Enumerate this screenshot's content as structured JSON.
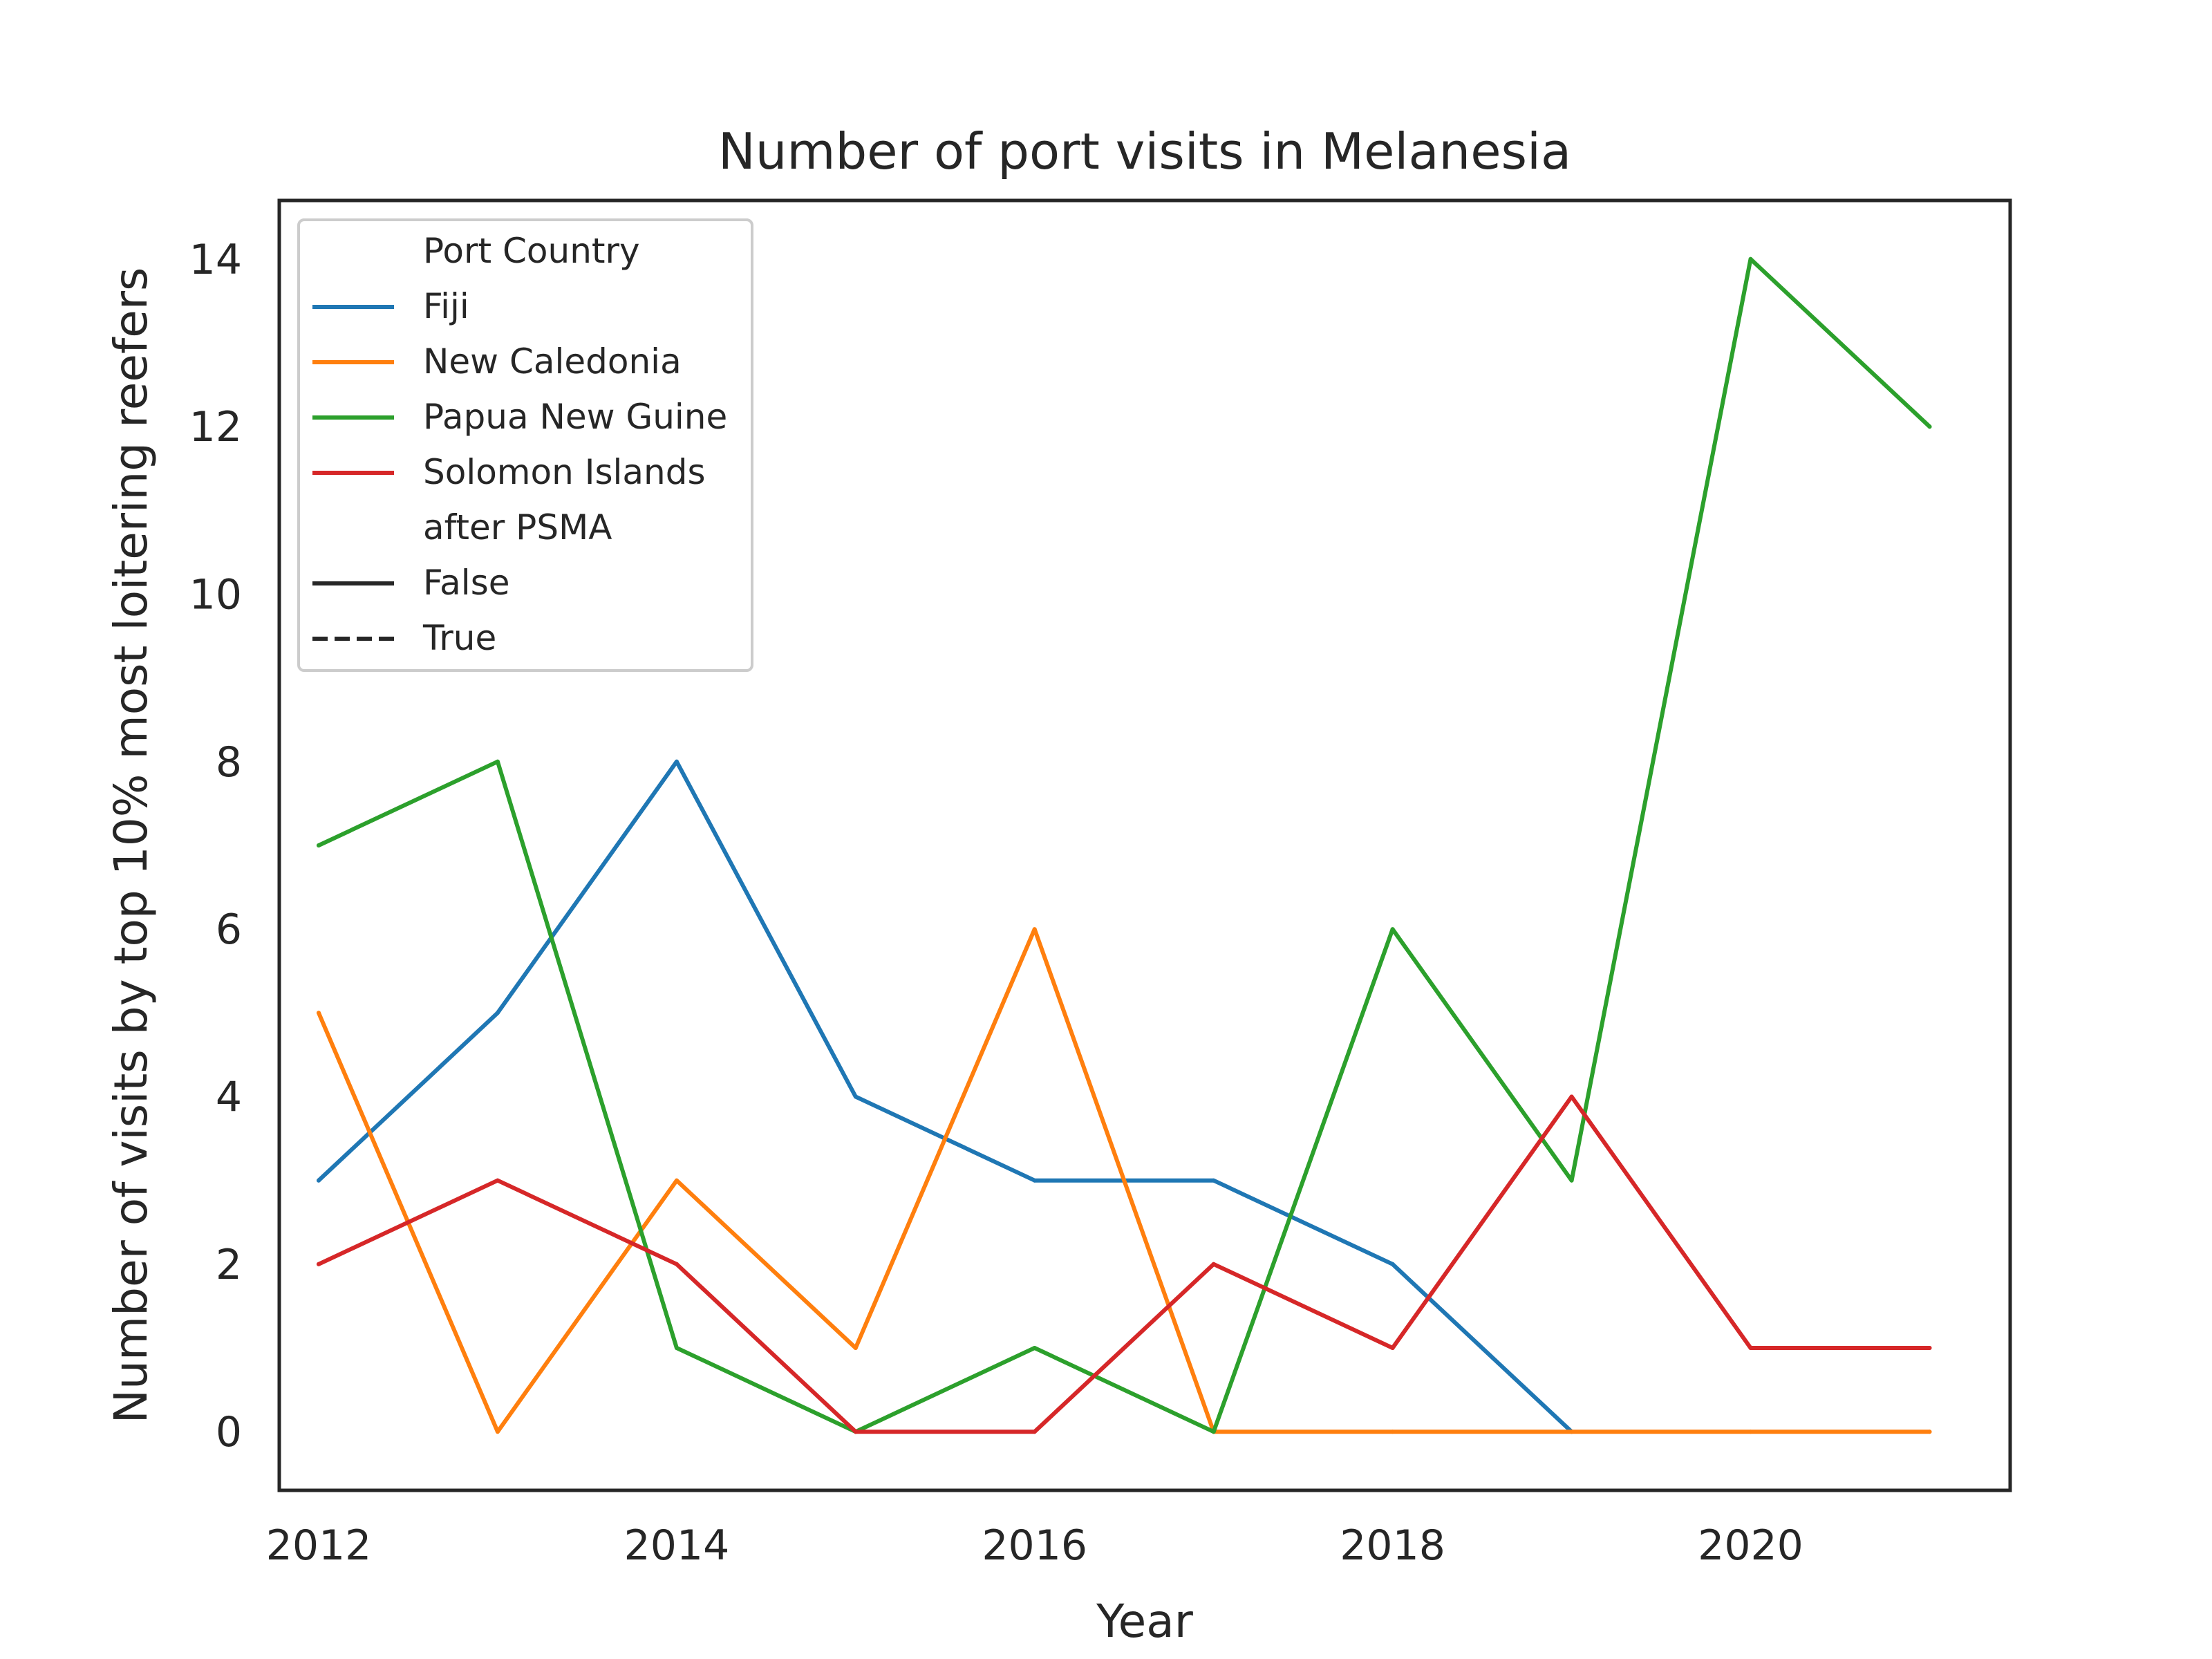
{
  "chart_data": {
    "type": "line",
    "title": "Number of port visits in Melanesia",
    "xlabel": "Year",
    "ylabel": "Number of visits by top 10% most loitering reefers",
    "x": [
      2012,
      2013,
      2014,
      2015,
      2016,
      2017,
      2018,
      2019,
      2020,
      2021
    ],
    "xlim": [
      2011.78,
      2021.45
    ],
    "ylim": [
      -0.7,
      14.7
    ],
    "xticks": [
      2012,
      2014,
      2016,
      2018,
      2020
    ],
    "yticks": [
      0,
      2,
      4,
      6,
      8,
      10,
      12,
      14
    ],
    "grid": false,
    "legend": {
      "placement": "top-left",
      "hue_title": "Port Country",
      "style_title": "after PSMA",
      "style_entries": [
        {
          "label": "False",
          "dash": "solid"
        },
        {
          "label": "True",
          "dash": "dashed"
        }
      ]
    },
    "series": [
      {
        "name": "Fiji",
        "color": "#1f77b4",
        "x": [
          2012,
          2013,
          2014,
          2015,
          2016,
          2017,
          2018,
          2019
        ],
        "values": [
          3,
          5,
          8,
          4,
          3,
          3,
          2,
          0
        ]
      },
      {
        "name": "New Caledonia",
        "color": "#ff7f0e",
        "x": [
          2012,
          2013,
          2014,
          2015,
          2016,
          2017,
          2018,
          2019,
          2020,
          2021
        ],
        "values": [
          5,
          0,
          3,
          1,
          6,
          0,
          0,
          0,
          0,
          0
        ]
      },
      {
        "name": "Papua New Guine",
        "color": "#2ca02c",
        "x": [
          2012,
          2013,
          2014,
          2015,
          2016,
          2017,
          2018,
          2019,
          2020,
          2021
        ],
        "values": [
          7,
          8,
          1,
          0,
          1,
          0,
          6,
          3,
          14,
          12
        ]
      },
      {
        "name": "Solomon Islands",
        "color": "#d62728",
        "x": [
          2012,
          2013,
          2014,
          2015,
          2016,
          2017,
          2018,
          2019,
          2020,
          2021
        ],
        "values": [
          2,
          3,
          2,
          0,
          0,
          2,
          1,
          4,
          1,
          1
        ]
      }
    ]
  }
}
